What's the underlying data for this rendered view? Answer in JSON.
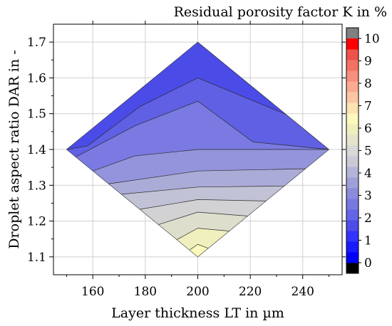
{
  "chart_data": {
    "type": "contour",
    "title": "",
    "xlabel": "Layer thickness LT in µm",
    "ylabel": "Droplet aspect ratio DAR in -",
    "colorbar_label": "Residual porosity factor K in %",
    "xlim": [
      145,
      255
    ],
    "ylim": [
      1.05,
      1.75
    ],
    "x_ticks": [
      160,
      180,
      200,
      220,
      240
    ],
    "y_ticks": [
      1.1,
      1.2,
      1.3,
      1.4,
      1.5,
      1.6,
      1.7
    ],
    "grid": true,
    "domain_vertices": [
      [
        150,
        1.4
      ],
      [
        200,
        1.7
      ],
      [
        250,
        1.4
      ],
      [
        200,
        1.1
      ]
    ],
    "contour_lines": [
      {
        "level": 1.5,
        "points": [
          [
            200,
            1.7
          ],
          [
            250,
            1.4
          ]
        ]
      },
      {
        "level": 2.0,
        "points": [
          [
            150,
            1.4
          ],
          [
            158,
            1.41
          ],
          [
            178,
            1.52
          ],
          [
            200,
            1.6
          ],
          [
            234,
            1.497
          ]
        ]
      },
      {
        "level": 2.5,
        "points": [
          [
            153.5,
            1.379
          ],
          [
            176,
            1.466
          ],
          [
            200,
            1.535
          ],
          [
            221,
            1.421
          ],
          [
            250,
            1.4
          ]
        ]
      },
      {
        "level": 3.0,
        "points": [
          [
            160,
            1.34
          ],
          [
            176,
            1.382
          ],
          [
            200,
            1.4
          ],
          [
            250,
            1.4
          ]
        ]
      },
      {
        "level": 3.5,
        "points": [
          [
            166,
            1.304
          ],
          [
            200,
            1.34
          ],
          [
            241,
            1.346
          ]
        ]
      },
      {
        "level": 4.0,
        "points": [
          [
            171,
            1.275
          ],
          [
            200,
            1.295
          ],
          [
            233,
            1.298
          ]
        ]
      },
      {
        "level": 4.5,
        "points": [
          [
            178,
            1.233
          ],
          [
            200,
            1.26
          ],
          [
            226,
            1.256
          ]
        ]
      },
      {
        "level": 5.0,
        "points": [
          [
            185,
            1.19
          ],
          [
            200,
            1.225
          ],
          [
            219,
            1.214
          ]
        ]
      },
      {
        "level": 5.5,
        "points": [
          [
            192,
            1.148
          ],
          [
            200,
            1.18
          ],
          [
            212,
            1.172
          ]
        ]
      },
      {
        "level": 6.0,
        "points": [
          [
            197,
            1.12
          ],
          [
            200,
            1.135
          ],
          [
            204,
            1.124
          ]
        ]
      }
    ],
    "colorbar": {
      "range": [
        0,
        10
      ],
      "ticks": [
        0,
        1,
        2,
        3,
        4,
        5,
        6,
        7,
        8,
        9,
        10
      ],
      "step": 0.5,
      "under_color": "#000000",
      "over_color": "#808080"
    },
    "colors": {
      "bands": [
        "#0000ff",
        "#1a1aff",
        "#3333ff",
        "#4d4de8",
        "#6464e8",
        "#7878e0",
        "#8c8cdc",
        "#a0a0d8",
        "#b4b4d8",
        "#cacad6",
        "#d8d8d6",
        "#e4e4cc",
        "#efefbe",
        "#fbf9bb",
        "#fde2b2",
        "#fcc6a4",
        "#fbab93",
        "#f78f7d",
        "#f37264",
        "#ef524a",
        "#ff0000"
      ],
      "shaded": [
        "#3a3aea",
        "#4b4be8",
        "#6060e4",
        "#7a7ae2",
        "#9494dc",
        "#ababd8",
        "#c2c2d6",
        "#d2d2d4",
        "#dedecc",
        "#f0f0be",
        "#fbf9bb",
        "#fdd0a4",
        "#f8a385"
      ]
    }
  }
}
